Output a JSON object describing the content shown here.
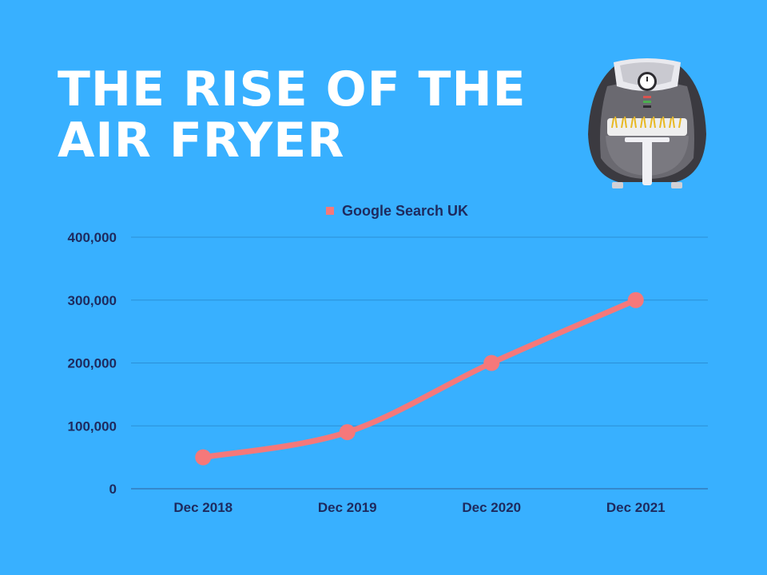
{
  "title_lines": [
    "THE RISE OF THE",
    "AIR FRYER"
  ],
  "chart_data": {
    "type": "line",
    "categories": [
      "Dec 2018",
      "Dec 2019",
      "Dec 2020",
      "Dec 2021"
    ],
    "series": [
      {
        "name": "Google Search UK",
        "values": [
          50000,
          90000,
          200000,
          300000
        ]
      }
    ],
    "ylim": [
      0,
      400000
    ],
    "yticks": [
      0,
      100000,
      200000,
      300000,
      400000
    ],
    "ytick_labels": [
      "0",
      "100,000",
      "200,000",
      "300,000",
      "400,000"
    ],
    "grid": true,
    "legend_position": "top",
    "colors": {
      "line": "#f5787a",
      "grid": "#2a8fd6",
      "text": "#1e2a5e",
      "background": "#38b0ff"
    }
  }
}
